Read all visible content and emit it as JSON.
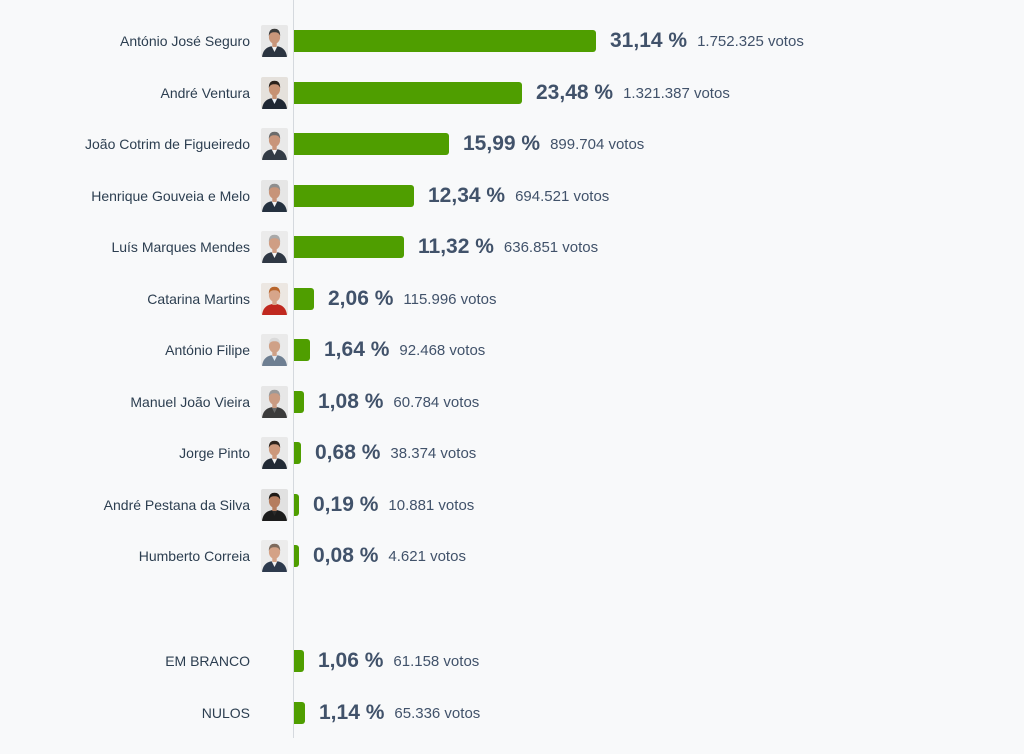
{
  "chart_data": {
    "type": "bar",
    "orientation": "horizontal",
    "unit_label": "votos",
    "candidates": [
      {
        "name": "António José Seguro",
        "percent": 31.14,
        "percent_label": "31,14 %",
        "votes_label": "1.752.325 votos",
        "avatar_icon": "candidate-photo",
        "avatar_colors": {
          "bg": "#e8e8e8",
          "hair": "#3a3a3a",
          "suit": "#2b3440",
          "shirt": "#f2f2f2",
          "skin": "#c9967a"
        }
      },
      {
        "name": "André Ventura",
        "percent": 23.48,
        "percent_label": "23,48 %",
        "votes_label": "1.321.387 votos",
        "avatar_icon": "candidate-photo",
        "avatar_colors": {
          "bg": "#e5e1dc",
          "hair": "#2b221c",
          "suit": "#1f2733",
          "shirt": "#e8eef5",
          "skin": "#c69274"
        }
      },
      {
        "name": "João Cotrim de Figueiredo",
        "percent": 15.99,
        "percent_label": "15,99 %",
        "votes_label": "899.704 votos",
        "avatar_icon": "candidate-photo",
        "avatar_colors": {
          "bg": "#e9e9e9",
          "hair": "#6b6b6b",
          "suit": "#333b45",
          "shirt": "#f4f4f4",
          "skin": "#c8957b"
        }
      },
      {
        "name": "Henrique Gouveia e Melo",
        "percent": 12.34,
        "percent_label": "12,34 %",
        "votes_label": "694.521 votos",
        "avatar_icon": "candidate-photo",
        "avatar_colors": {
          "bg": "#e6e6e6",
          "hair": "#8e8e8e",
          "suit": "#25313f",
          "shirt": "#f2f2f2",
          "skin": "#c79479"
        }
      },
      {
        "name": "Luís Marques Mendes",
        "percent": 11.32,
        "percent_label": "11,32 %",
        "votes_label": "636.851 votos",
        "avatar_icon": "candidate-photo",
        "avatar_colors": {
          "bg": "#ebebeb",
          "hair": "#a9a9a9",
          "suit": "#2f3844",
          "shirt": "#f5f5f5",
          "skin": "#cf9e84"
        }
      },
      {
        "name": "Catarina Martins",
        "percent": 2.06,
        "percent_label": "2,06 %",
        "votes_label": "115.996 votos",
        "avatar_icon": "candidate-photo",
        "avatar_colors": {
          "bg": "#ece7e2",
          "hair": "#b8652c",
          "suit": "#c0281f",
          "shirt": "#c0281f",
          "skin": "#d7a58a"
        }
      },
      {
        "name": "António Filipe",
        "percent": 1.64,
        "percent_label": "1,64 %",
        "votes_label": "92.468 votos",
        "avatar_icon": "candidate-photo",
        "avatar_colors": {
          "bg": "#eaeaea",
          "hair": "#d9d9d9",
          "suit": "#6e7f92",
          "shirt": "#dfe7ef",
          "skin": "#cfa187"
        }
      },
      {
        "name": "Manuel João Vieira",
        "percent": 1.08,
        "percent_label": "1,08 %",
        "votes_label": "60.784 votos",
        "avatar_icon": "candidate-photo",
        "avatar_colors": {
          "bg": "#e7e7e7",
          "hair": "#9a9a9a",
          "suit": "#3b3b3b",
          "shirt": "#6a6a6a",
          "skin": "#c99b82"
        }
      },
      {
        "name": "Jorge Pinto",
        "percent": 0.68,
        "percent_label": "0,68 %",
        "votes_label": "38.374 votos",
        "avatar_icon": "candidate-photo",
        "avatar_colors": {
          "bg": "#e9e9e9",
          "hair": "#2e241d",
          "suit": "#222a35",
          "shirt": "#f0f0f0",
          "skin": "#cc987b"
        }
      },
      {
        "name": "André Pestana da Silva",
        "percent": 0.19,
        "percent_label": "0,19 %",
        "votes_label": "10.881 votos",
        "avatar_icon": "candidate-photo",
        "avatar_colors": {
          "bg": "#e1e1e1",
          "hair": "#1f1a16",
          "suit": "#1c1c1c",
          "shirt": "#2a2a2a",
          "skin": "#b57d5f"
        }
      },
      {
        "name": "Humberto Correia",
        "percent": 0.08,
        "percent_label": "0,08 %",
        "votes_label": "4.621 votos",
        "avatar_icon": "candidate-photo",
        "avatar_colors": {
          "bg": "#ececec",
          "hair": "#7d6a5c",
          "suit": "#2d3a4d",
          "shirt": "#f0f0f0",
          "skin": "#d4a286"
        }
      }
    ],
    "other": [
      {
        "name": "EM BRANCO",
        "percent": 1.06,
        "percent_label": "1,06 %",
        "votes_label": "61.158 votos"
      },
      {
        "name": "NULOS",
        "percent": 1.14,
        "percent_label": "1,14 %",
        "votes_label": "65.336 votos"
      }
    ],
    "colors": {
      "bar": "#4f9e00",
      "text": "#41526a",
      "background": "#f8f9fa",
      "axis": "#d5d9de"
    }
  }
}
